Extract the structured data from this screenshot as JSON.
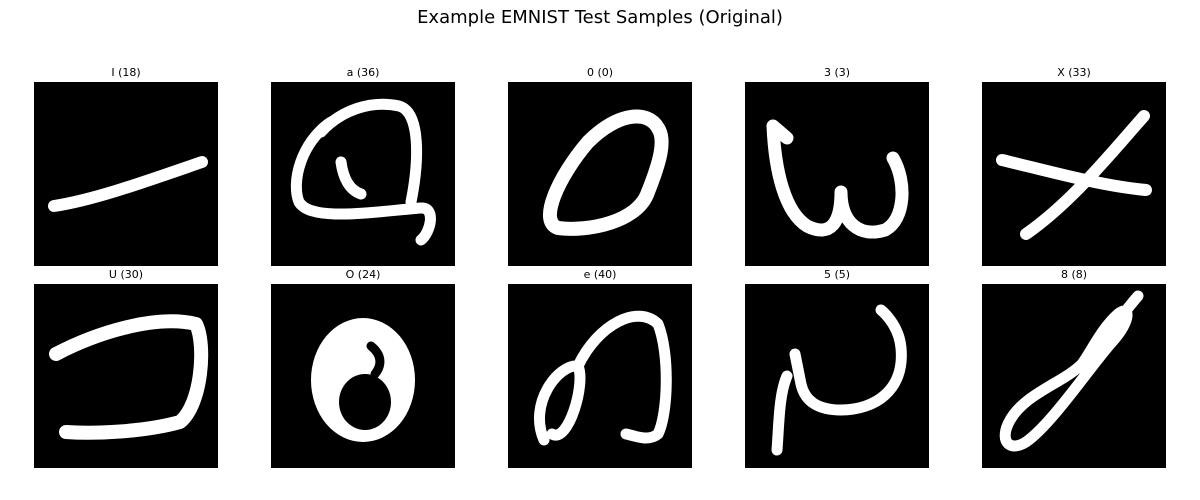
{
  "title": "Example EMNIST Test Samples (Original)",
  "samples": [
    {
      "label": "I (18)",
      "icon": "handwritten-stroke"
    },
    {
      "label": "a (36)",
      "icon": "handwritten-stroke"
    },
    {
      "label": "0 (0)",
      "icon": "handwritten-stroke"
    },
    {
      "label": "3 (3)",
      "icon": "handwritten-stroke"
    },
    {
      "label": "X (33)",
      "icon": "handwritten-stroke"
    },
    {
      "label": "U (30)",
      "icon": "handwritten-stroke"
    },
    {
      "label": "O (24)",
      "icon": "handwritten-stroke"
    },
    {
      "label": "e (40)",
      "icon": "handwritten-stroke"
    },
    {
      "label": "5 (5)",
      "icon": "handwritten-stroke"
    },
    {
      "label": "8 (8)",
      "icon": "handwritten-stroke"
    }
  ],
  "colors": {
    "background": "#000000",
    "stroke": "#ffffff",
    "page": "#ffffff"
  }
}
